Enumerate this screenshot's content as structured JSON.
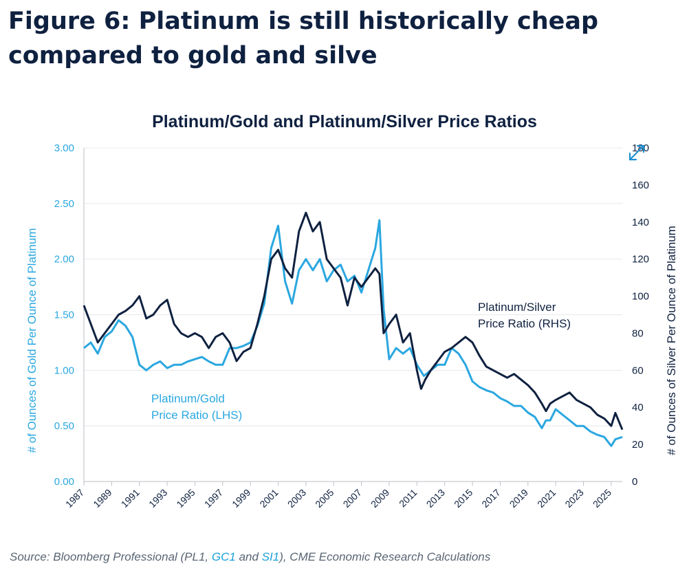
{
  "figure": {
    "title": "Figure 6: Platinum is still historically cheap compared to gold and silve"
  },
  "source": {
    "prefix": "Source: Bloomberg Professional (PL1, ",
    "gc1": "GC1",
    "and": " and ",
    "si1": "SI1",
    "suffix": "), CME Economic Research Calculations"
  },
  "colors": {
    "pt_gold": "#2aa7e0",
    "pt_silver": "#0f2140",
    "left_axis": "#2aa7e0",
    "right_axis": "#0f2140",
    "grid": "#e6e8eb",
    "source_link": "#1aa0dc"
  },
  "icons": {
    "expand": "expand-arrows-icon"
  },
  "chart_data": {
    "type": "line",
    "title": "Platinum/Gold and Platinum/Silver Price Ratios",
    "ylabel_left": "# of Ounces of Gold Per Ounce of Platinum",
    "ylabel_right": "# of Ounces of Silver Per Ounce of Platinum",
    "ylim_left": [
      0,
      3
    ],
    "ylim_right": [
      0,
      180
    ],
    "yticks_left": [
      "0.00",
      "0.50",
      "1.00",
      "1.50",
      "2.00",
      "2.50",
      "3.00"
    ],
    "yticks_right": [
      "0",
      "20",
      "40",
      "60",
      "80",
      "100",
      "120",
      "140",
      "160",
      "180"
    ],
    "xlim": [
      1987,
      2025.8
    ],
    "xticks": [
      "1987",
      "1989",
      "1991",
      "1993",
      "1995",
      "1997",
      "1999",
      "2001",
      "2003",
      "2005",
      "2007",
      "2009",
      "2011",
      "2013",
      "2015",
      "2017",
      "2019",
      "2021",
      "2023",
      "2025"
    ],
    "grid": "horizontal",
    "series": [
      {
        "name": "Platinum/Gold Price Ratio (LHS)",
        "label_lines": [
          "Platinum/Gold",
          "Price Ratio (LHS)"
        ],
        "axis": "left",
        "x": [
          1987.0,
          1987.5,
          1988.0,
          1988.5,
          1989.0,
          1989.5,
          1990.0,
          1990.5,
          1991.0,
          1991.5,
          1992.0,
          1992.5,
          1993.0,
          1993.5,
          1994.0,
          1994.5,
          1995.0,
          1995.5,
          1996.0,
          1996.5,
          1997.0,
          1997.5,
          1998.0,
          1998.5,
          1999.0,
          1999.5,
          2000.0,
          2000.5,
          2001.0,
          2001.5,
          2002.0,
          2002.5,
          2003.0,
          2003.5,
          2004.0,
          2004.5,
          2005.0,
          2005.5,
          2006.0,
          2006.5,
          2007.0,
          2007.5,
          2008.0,
          2008.3,
          2008.6,
          2009.0,
          2009.5,
          2010.0,
          2010.5,
          2011.0,
          2011.5,
          2012.0,
          2012.5,
          2013.0,
          2013.5,
          2014.0,
          2014.5,
          2015.0,
          2015.5,
          2016.0,
          2016.5,
          2017.0,
          2017.5,
          2018.0,
          2018.5,
          2019.0,
          2019.5,
          2020.0,
          2020.3,
          2020.6,
          2021.0,
          2021.5,
          2022.0,
          2022.5,
          2023.0,
          2023.5,
          2024.0,
          2024.5,
          2025.0,
          2025.3,
          2025.8
        ],
        "values": [
          1.2,
          1.25,
          1.15,
          1.3,
          1.35,
          1.45,
          1.4,
          1.3,
          1.05,
          1.0,
          1.05,
          1.08,
          1.02,
          1.05,
          1.05,
          1.08,
          1.1,
          1.12,
          1.08,
          1.05,
          1.05,
          1.2,
          1.2,
          1.22,
          1.25,
          1.4,
          1.6,
          2.1,
          2.3,
          1.8,
          1.6,
          1.9,
          2.0,
          1.9,
          2.0,
          1.8,
          1.9,
          1.95,
          1.8,
          1.85,
          1.7,
          1.9,
          2.1,
          2.35,
          1.55,
          1.1,
          1.2,
          1.15,
          1.2,
          1.05,
          0.95,
          1.0,
          1.05,
          1.05,
          1.2,
          1.15,
          1.05,
          0.9,
          0.85,
          0.82,
          0.8,
          0.75,
          0.72,
          0.68,
          0.68,
          0.62,
          0.58,
          0.48,
          0.55,
          0.55,
          0.65,
          0.6,
          0.55,
          0.5,
          0.5,
          0.45,
          0.42,
          0.4,
          0.32,
          0.38,
          0.4
        ]
      },
      {
        "name": "Platinum/Silver Price Ratio (RHS)",
        "label_lines": [
          "Platinum/Silver",
          "Price Ratio (RHS)"
        ],
        "axis": "right",
        "x": [
          1987.0,
          1987.5,
          1988.0,
          1988.5,
          1989.0,
          1989.5,
          1990.0,
          1990.5,
          1991.0,
          1991.5,
          1992.0,
          1992.5,
          1993.0,
          1993.5,
          1994.0,
          1994.5,
          1995.0,
          1995.5,
          1996.0,
          1996.5,
          1997.0,
          1997.5,
          1998.0,
          1998.5,
          1999.0,
          1999.5,
          2000.0,
          2000.5,
          2001.0,
          2001.5,
          2002.0,
          2002.5,
          2003.0,
          2003.5,
          2004.0,
          2004.5,
          2005.0,
          2005.5,
          2006.0,
          2006.5,
          2007.0,
          2007.5,
          2008.0,
          2008.3,
          2008.6,
          2009.0,
          2009.5,
          2010.0,
          2010.5,
          2011.0,
          2011.3,
          2011.6,
          2012.0,
          2012.5,
          2013.0,
          2013.5,
          2014.0,
          2014.5,
          2015.0,
          2015.5,
          2016.0,
          2016.5,
          2017.0,
          2017.5,
          2018.0,
          2018.5,
          2019.0,
          2019.5,
          2020.0,
          2020.3,
          2020.6,
          2021.0,
          2021.5,
          2022.0,
          2022.5,
          2023.0,
          2023.5,
          2024.0,
          2024.5,
          2025.0,
          2025.3,
          2025.8
        ],
        "values": [
          95,
          85,
          75,
          80,
          85,
          90,
          92,
          95,
          100,
          88,
          90,
          95,
          98,
          85,
          80,
          78,
          80,
          78,
          72,
          78,
          80,
          75,
          65,
          70,
          72,
          85,
          100,
          120,
          125,
          115,
          110,
          135,
          145,
          135,
          140,
          120,
          115,
          110,
          95,
          110,
          105,
          110,
          115,
          112,
          80,
          85,
          90,
          75,
          80,
          60,
          50,
          55,
          60,
          65,
          70,
          72,
          75,
          78,
          75,
          68,
          62,
          60,
          58,
          56,
          58,
          55,
          52,
          48,
          42,
          38,
          42,
          44,
          46,
          48,
          44,
          42,
          40,
          36,
          34,
          30,
          37,
          28
        ]
      }
    ]
  }
}
